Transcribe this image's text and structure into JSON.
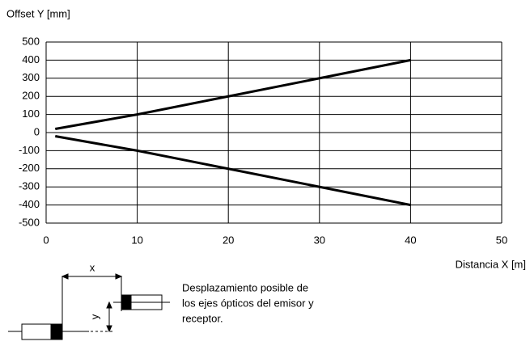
{
  "chart_data": {
    "type": "line",
    "y_label": "Offset Y [mm]",
    "x_label": "Distancia X [m]",
    "series": [
      {
        "name": null,
        "color": "#000000",
        "x": [
          1,
          10,
          40
        ],
        "values": [
          20,
          100,
          400
        ]
      },
      {
        "name": null,
        "color": "#000000",
        "x": [
          1,
          10,
          40
        ],
        "values": [
          -20,
          -100,
          -400
        ]
      }
    ],
    "xlim": [
      0,
      50
    ],
    "xticks": [
      0,
      10,
      20,
      30,
      40,
      50
    ],
    "ylim": [
      -500,
      500
    ],
    "yticks": [
      -500,
      -400,
      -300,
      -200,
      -100,
      0,
      100,
      200,
      300,
      400,
      500
    ],
    "grid": true
  },
  "diagram": {
    "x_symbol": "x",
    "y_symbol": "y",
    "caption_lines": [
      "Desplazamiento posible de",
      "los ejes ópticos del emisor y",
      "receptor."
    ]
  }
}
